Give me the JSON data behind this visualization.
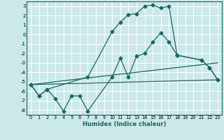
{
  "xlabel": "Humidex (Indice chaleur)",
  "bg_color": "#cce9e9",
  "grid_color": "#ffffff",
  "line_color": "#1a6666",
  "xlim": [
    -0.5,
    23.5
  ],
  "ylim": [
    -8.5,
    3.5
  ],
  "xticks": [
    0,
    1,
    2,
    3,
    4,
    5,
    6,
    7,
    8,
    9,
    10,
    11,
    12,
    13,
    14,
    15,
    16,
    17,
    18,
    19,
    20,
    21,
    22,
    23
  ],
  "yticks": [
    -8,
    -7,
    -6,
    -5,
    -4,
    -3,
    -2,
    -1,
    0,
    1,
    2,
    3
  ],
  "series": [
    {
      "x": [
        0,
        1,
        2,
        3,
        4,
        5,
        6,
        7,
        10,
        11,
        12,
        13,
        14,
        15,
        16,
        17,
        18,
        21,
        22,
        23
      ],
      "y": [
        -5.3,
        -6.5,
        -5.8,
        -6.8,
        -8.1,
        -6.5,
        -6.5,
        -8.1,
        -4.5,
        -2.5,
        -4.5,
        -2.3,
        -2.0,
        -0.8,
        0.2,
        -0.8,
        -2.2,
        -2.7,
        -3.5,
        -4.8
      ],
      "marker": "D",
      "markersize": 2.5,
      "linewidth": 0.9
    },
    {
      "x": [
        0,
        1,
        2,
        7,
        10,
        11,
        12,
        13,
        14,
        15,
        16,
        17,
        18,
        21,
        22,
        23
      ],
      "y": [
        -5.3,
        -6.5,
        -5.8,
        -4.5,
        0.3,
        1.3,
        2.1,
        2.2,
        3.0,
        3.1,
        2.8,
        3.0,
        -2.2,
        -2.7,
        -3.5,
        -4.8
      ],
      "marker": "D",
      "markersize": 2.5,
      "linewidth": 0.9
    },
    {
      "x": [
        0,
        23
      ],
      "y": [
        -5.3,
        -4.8
      ],
      "marker": null,
      "markersize": 0,
      "linewidth": 0.9
    },
    {
      "x": [
        0,
        23
      ],
      "y": [
        -5.3,
        -3.0
      ],
      "marker": null,
      "markersize": 0,
      "linewidth": 0.9
    }
  ]
}
